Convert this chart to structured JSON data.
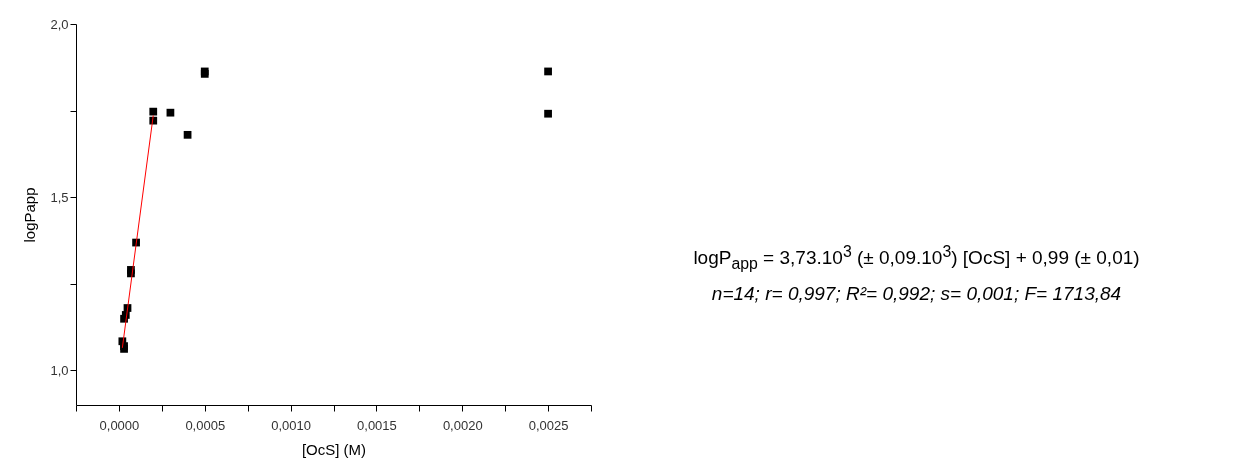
{
  "chart_data": {
    "type": "scatter",
    "xlabel": "[OcS] (M)",
    "ylabel": "logPapp",
    "marker": "square",
    "grid": false,
    "xlim": [
      -0.00025,
      0.00275
    ],
    "ylim": [
      0.9,
      2.0
    ],
    "xticks": [
      {
        "value": -0.00025,
        "label": null
      },
      {
        "value": 0,
        "label": "0,0000"
      },
      {
        "value": 0.00025,
        "label": null
      },
      {
        "value": 0.0005,
        "label": "0,0005"
      },
      {
        "value": 0.00075,
        "label": null
      },
      {
        "value": 0.001,
        "label": "0,0010"
      },
      {
        "value": 0.00125,
        "label": null
      },
      {
        "value": 0.0015,
        "label": "0,0015"
      },
      {
        "value": 0.00175,
        "label": null
      },
      {
        "value": 0.002,
        "label": "0,0020"
      },
      {
        "value": 0.00225,
        "label": null
      },
      {
        "value": 0.0025,
        "label": "0,0025"
      },
      {
        "value": 0.00275,
        "label": null
      }
    ],
    "yticks": [
      {
        "value": 1.0,
        "label": "1,0"
      },
      {
        "value": 1.25,
        "label": null
      },
      {
        "value": 1.5,
        "label": "1,5"
      },
      {
        "value": 1.75,
        "label": null
      },
      {
        "value": 2.0,
        "label": "2,0"
      }
    ],
    "series": [
      {
        "color": "#000000",
        "x": [
          2e-05,
          3e-05,
          3e-05,
          3e-05,
          4e-05,
          5e-05,
          7e-05,
          7e-05,
          0.0001,
          0.0002,
          0.0002,
          0.0003,
          0.0004,
          0.0005,
          0.0005,
          0.0025,
          0.0025
        ],
        "values": [
          1.084,
          1.07,
          1.062,
          1.149,
          1.16,
          1.18,
          1.28,
          1.29,
          1.369,
          1.747,
          1.721,
          1.744,
          1.68,
          1.863,
          1.856,
          1.863,
          1.741
        ]
      },
      {
        "type": "line",
        "color": "#ff0000",
        "marker": "none",
        "x": [
          2e-05,
          0.0002
        ],
        "values": [
          1.065,
          1.736
        ]
      }
    ],
    "annotations": [
      "logP$_{app}$ = 3,73.10$^{3}$ (± 0,09.10$^{3}$) [OcS] + 0,99 (± 0,01)",
      "n=14; r= 0,997; R²= 0,992; s= 0,001; F= 1713,84"
    ]
  }
}
